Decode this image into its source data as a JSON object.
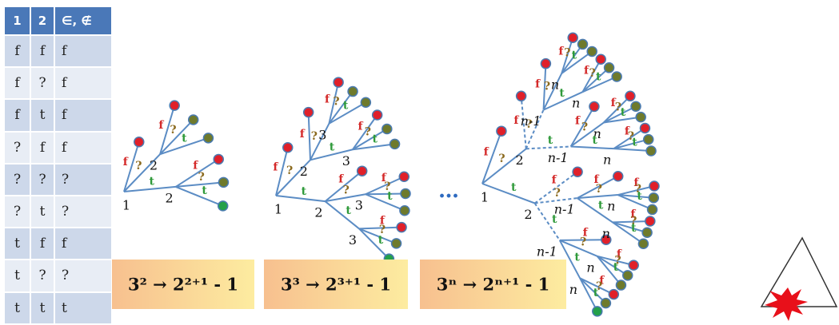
{
  "table": {
    "header": [
      "1",
      "2",
      "∈, ∉"
    ],
    "rows": [
      [
        "f",
        "f",
        "f"
      ],
      [
        "f",
        "?",
        "f"
      ],
      [
        "f",
        "t",
        "f"
      ],
      [
        "?",
        "f",
        "f"
      ],
      [
        "?",
        "?",
        "?"
      ],
      [
        "?",
        "t",
        "?"
      ],
      [
        "t",
        "f",
        "f"
      ],
      [
        "t",
        "?",
        "?"
      ],
      [
        "t",
        "t",
        "t"
      ]
    ]
  },
  "trees": [
    {
      "n": "1",
      "c": [
        {
          "e": "f",
          "v": 0
        },
        {
          "e": "?",
          "n": "2",
          "c": [
            {
              "e": "f",
              "v": 0
            },
            {
              "e": "?",
              "v": 1
            },
            {
              "e": "t",
              "v": 1
            }
          ]
        },
        {
          "e": "t",
          "n": "2",
          "c": [
            {
              "e": "f",
              "v": 0
            },
            {
              "e": "?",
              "v": 1
            },
            {
              "e": "t",
              "v": 2
            }
          ]
        }
      ]
    },
    {
      "n": "1",
      "c": [
        {
          "e": "f",
          "v": 0
        },
        {
          "e": "?",
          "n": "2",
          "c": [
            {
              "e": "f",
              "v": 0
            },
            {
              "e": "?",
              "n": "3",
              "c": [
                {
                  "e": "f",
                  "v": 0
                },
                {
                  "e": "?",
                  "v": 1
                },
                {
                  "e": "t",
                  "v": 1
                }
              ]
            },
            {
              "e": "t",
              "n": "3",
              "c": [
                {
                  "e": "f",
                  "v": 0
                },
                {
                  "e": "?",
                  "v": 1
                },
                {
                  "e": "t",
                  "v": 1
                }
              ]
            }
          ]
        },
        {
          "e": "t",
          "n": "2",
          "c": [
            {
              "e": "f",
              "v": 0
            },
            {
              "e": "?",
              "n": "3",
              "c": [
                {
                  "e": "f",
                  "v": 0
                },
                {
                  "e": "?",
                  "v": 1
                },
                {
                  "e": "t",
                  "v": 1
                }
              ]
            },
            {
              "e": "t",
              "n": "3",
              "c": [
                {
                  "e": "f",
                  "v": 0
                },
                {
                  "e": "?",
                  "v": 1
                },
                {
                  "e": "t",
                  "v": 2
                }
              ]
            }
          ]
        }
      ]
    },
    {
      "n": "1",
      "c": [
        {
          "e": "f",
          "v": 0
        },
        {
          "e": "?",
          "n": "2",
          "d": true,
          "c": [
            {
              "e": "f",
              "v": 0
            },
            {
              "e": "?",
              "n": "n-1",
              "c": [
                {
                  "e": "f",
                  "v": 0
                },
                {
                  "e": "?",
                  "n": "n",
                  "c": [
                    {
                      "e": "f",
                      "v": 0
                    },
                    {
                      "e": "?",
                      "v": 1
                    },
                    {
                      "e": "t",
                      "v": 1
                    }
                  ]
                },
                {
                  "e": "t",
                  "n": "n",
                  "c": [
                    {
                      "e": "f",
                      "v": 0
                    },
                    {
                      "e": "?",
                      "v": 1
                    },
                    {
                      "e": "t",
                      "v": 1
                    }
                  ]
                }
              ]
            },
            {
              "e": "t",
              "n": "n-1",
              "c": [
                {
                  "e": "f",
                  "v": 0
                },
                {
                  "e": "?",
                  "n": "n",
                  "c": [
                    {
                      "e": "f",
                      "v": 0
                    },
                    {
                      "e": "?",
                      "v": 1
                    },
                    {
                      "e": "t",
                      "v": 1
                    }
                  ]
                },
                {
                  "e": "t",
                  "n": "n",
                  "c": [
                    {
                      "e": "f",
                      "v": 0
                    },
                    {
                      "e": "?",
                      "v": 1
                    },
                    {
                      "e": "t",
                      "v": 1
                    }
                  ]
                }
              ]
            }
          ]
        },
        {
          "e": "t",
          "n": "2",
          "d": true,
          "c": [
            {
              "e": "f",
              "v": 0
            },
            {
              "e": "?",
              "n": "n-1",
              "c": [
                {
                  "e": "f",
                  "v": 0
                },
                {
                  "e": "?",
                  "n": "n",
                  "c": [
                    {
                      "e": "f",
                      "v": 0
                    },
                    {
                      "e": "?",
                      "v": 1
                    },
                    {
                      "e": "t",
                      "v": 1
                    }
                  ]
                },
                {
                  "e": "t",
                  "n": "n",
                  "c": [
                    {
                      "e": "f",
                      "v": 0
                    },
                    {
                      "e": "?",
                      "v": 1
                    },
                    {
                      "e": "t",
                      "v": 1
                    }
                  ]
                }
              ]
            },
            {
              "e": "t",
              "n": "n-1",
              "c": [
                {
                  "e": "f",
                  "v": 0
                },
                {
                  "e": "?",
                  "n": "n",
                  "c": [
                    {
                      "e": "f",
                      "v": 0
                    },
                    {
                      "e": "?",
                      "v": 1
                    },
                    {
                      "e": "t",
                      "v": 1
                    }
                  ]
                },
                {
                  "e": "t",
                  "n": "n",
                  "c": [
                    {
                      "e": "f",
                      "v": 0
                    },
                    {
                      "e": "?",
                      "v": 1
                    },
                    {
                      "e": "t",
                      "v": 2
                    }
                  ]
                }
              ]
            }
          ]
        }
      ]
    }
  ],
  "ellipsis": "…",
  "formulas": [
    "3² → 2²⁺¹ - 1",
    "3³ → 2³⁺¹ - 1",
    "3ⁿ → 2ⁿ⁺¹ - 1"
  ],
  "leaf_colors": [
    "#e0202a",
    "#6e7a2c",
    "#23a04a"
  ]
}
